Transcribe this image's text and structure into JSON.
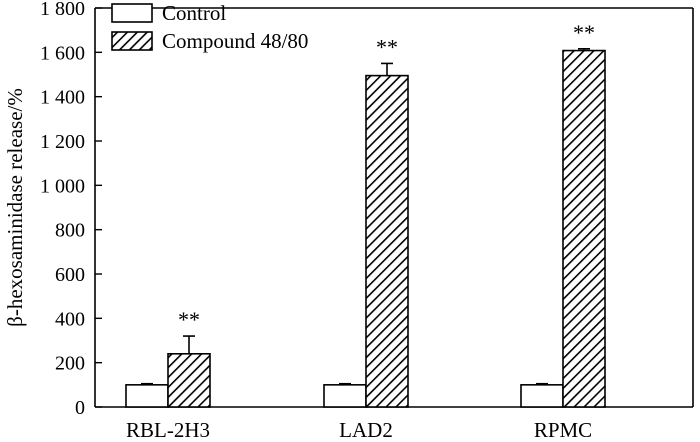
{
  "chart_data": {
    "type": "bar",
    "title": "",
    "xlabel": "",
    "ylabel": "β-hexosaminidase release/%",
    "ylim": [
      0,
      1800
    ],
    "yticks": [
      0,
      200,
      400,
      600,
      800,
      1000,
      1200,
      1400,
      1600,
      1800
    ],
    "ytick_labels": [
      "0",
      "200",
      "400",
      "600",
      "800",
      "1 000",
      "1 200",
      "1 400",
      "1 600",
      "1 800"
    ],
    "categories": [
      "RBL-2H3",
      "LAD2",
      "RPMC"
    ],
    "series": [
      {
        "name": "Control",
        "pattern": "solid",
        "values": [
          100,
          100,
          100
        ],
        "errors": [
          5,
          5,
          5
        ],
        "annotations": [
          "",
          "",
          ""
        ]
      },
      {
        "name": "Compound 48/80",
        "pattern": "hatched",
        "values": [
          240,
          1495,
          1608
        ],
        "errors": [
          80,
          55,
          8
        ],
        "annotations": [
          "**",
          "**",
          "**"
        ]
      }
    ],
    "legend_position": "top-left",
    "grid": false
  },
  "colors": {
    "axis": "#000000",
    "bar_fill": "#ffffff",
    "hatch": "#000000"
  }
}
